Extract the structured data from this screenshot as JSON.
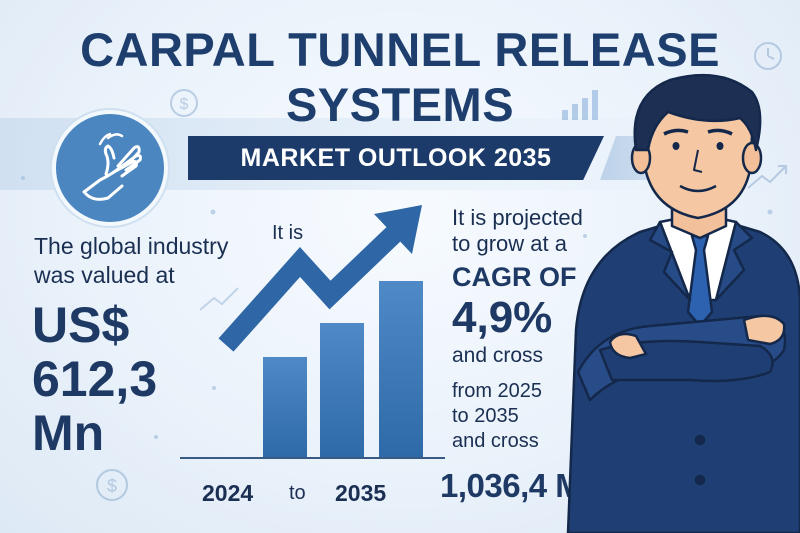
{
  "header": {
    "title_line1": "CARPAL TUNNEL RELEASE",
    "title_line2": "SYSTEMS",
    "banner": "MARKET OUTLOOK 2035"
  },
  "left": {
    "label_line1": "The global industry",
    "label_line2": "was valued at",
    "value_line1": "US$",
    "value_line2": "612,3",
    "value_line3": "Mn"
  },
  "center": {
    "it_is": "It is",
    "start_year": "2024",
    "to": "to",
    "end_year": "2035"
  },
  "right": {
    "label_line1": "It is projected",
    "label_line2": "to grow at a",
    "cagr_label": "CAGR OF",
    "cagr_value": "4,9%",
    "cross_line": "and cross",
    "period_line1": "from 2025",
    "period_line2": "to 2035",
    "period_line3": "and cross",
    "forecast_value": "1,036,4 M"
  },
  "colors": {
    "navy": "#1c3b6a",
    "accent_blue": "#4c86c0",
    "bar_blue": "#3e78b8",
    "background": "#eef4fb"
  },
  "icons": [
    "hand-icon",
    "clock-icon",
    "dollar-icon",
    "bar-chart-icon",
    "trend-arrow-icon",
    "businessman-illustration"
  ]
}
